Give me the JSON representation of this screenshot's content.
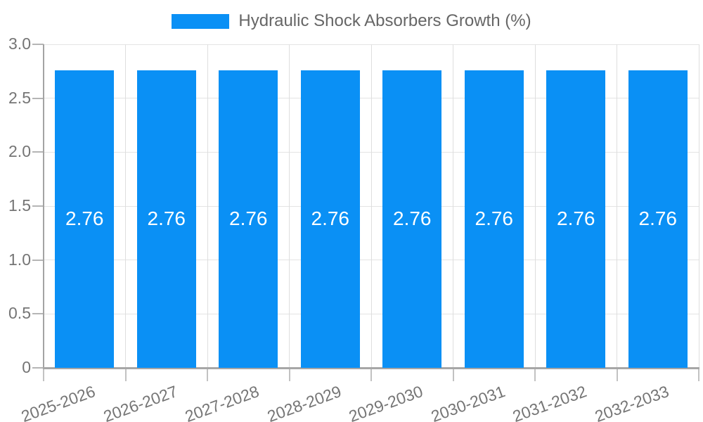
{
  "legend": {
    "label": "Hydraulic Shock Absorbers Growth (%)"
  },
  "chart_data": {
    "type": "bar",
    "title": "Hydraulic Shock Absorbers Growth (%)",
    "categories": [
      "2025-2026",
      "2026-2027",
      "2027-2028",
      "2028-2029",
      "2029-2030",
      "2030-2031",
      "2031-2032",
      "2032-2033"
    ],
    "series": [
      {
        "name": "Hydraulic Shock Absorbers Growth (%)",
        "values": [
          2.76,
          2.76,
          2.76,
          2.76,
          2.76,
          2.76,
          2.76,
          2.76
        ]
      }
    ],
    "bar_value_labels": [
      "2.76",
      "2.76",
      "2.76",
      "2.76",
      "2.76",
      "2.76",
      "2.76",
      "2.76"
    ],
    "xlabel": "",
    "ylabel": "",
    "ylim": [
      0,
      3
    ],
    "yticks": [
      0,
      0.5,
      1.0,
      1.5,
      2.0,
      2.5,
      3.0
    ],
    "ytick_labels": [
      "0",
      "0.5",
      "1.0",
      "1.5",
      "2.0",
      "2.5",
      "3.0"
    ],
    "xtick_rotation_deg": -20,
    "grid": true,
    "legend_position": "top-center",
    "colors": {
      "bar": "#0a90f5",
      "grid": "#e4e4e4",
      "axis": "#a6a6a6",
      "tick_text": "#757575",
      "legend_text": "#666666",
      "value_label_text": "#ffffff",
      "background": "#ffffff"
    }
  }
}
